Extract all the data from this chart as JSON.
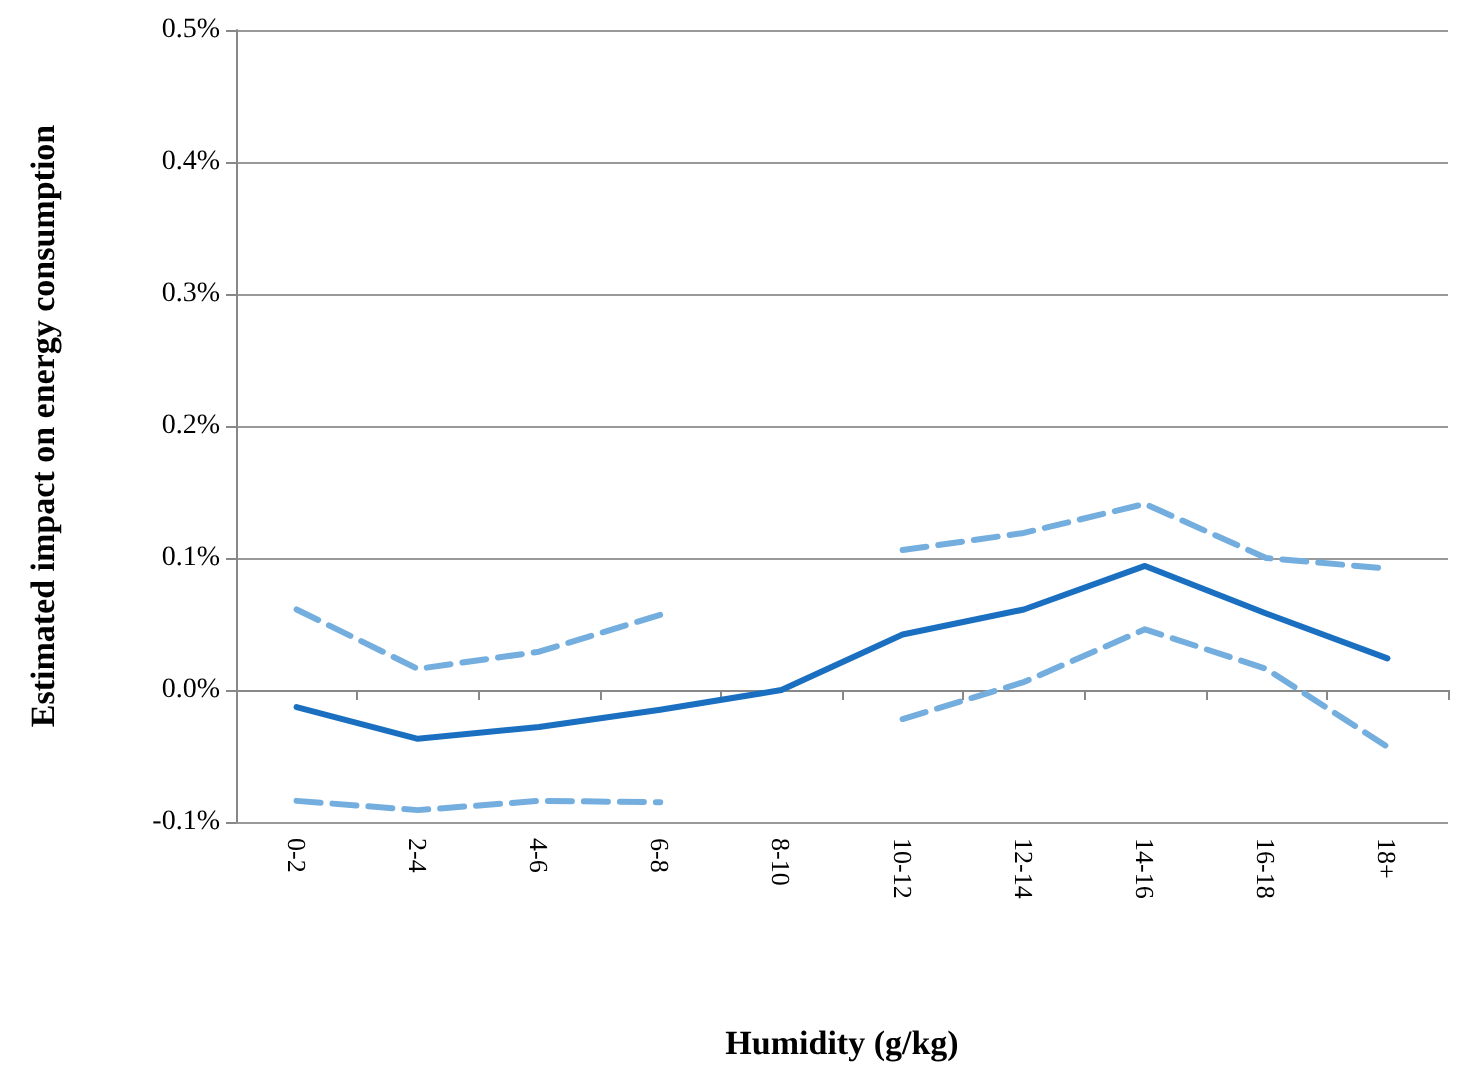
{
  "chart_data": {
    "type": "line",
    "xlabel": "Humidity (g/kg)",
    "ylabel": "Estimated impact on energy consumption",
    "categories": [
      "0-2",
      "2-4",
      "4-6",
      "6-8",
      "8-10",
      "10-12",
      "12-14",
      "14-16",
      "16-18",
      "18+"
    ],
    "series": [
      {
        "color": "#1a6fc0",
        "line_style": "solid",
        "values": [
          -0.013,
          -0.037,
          -0.028,
          -0.015,
          0,
          0.042,
          0.061,
          0.094,
          0.058,
          0.024
        ]
      },
      {
        "color": "#74aede",
        "line_style": "dashed",
        "values": [
          0.061,
          0.016,
          0.029,
          0.057,
          null,
          0.106,
          0.119,
          0.141,
          0.1,
          0.092
        ]
      },
      {
        "color": "#74aede",
        "line_style": "dashed",
        "values": [
          -0.084,
          -0.091,
          -0.084,
          -0.085,
          null,
          -0.022,
          0.006,
          0.046,
          0.016,
          -0.043
        ]
      }
    ],
    "ylim": [
      -0.1,
      0.5
    ],
    "yticks": [
      {
        "value": -0.1,
        "label": "-0.1%"
      },
      {
        "value": 0,
        "label": "0.0%"
      },
      {
        "value": 0.1,
        "label": "0.1%"
      },
      {
        "value": 0.2,
        "label": "0.2%"
      },
      {
        "value": 0.3,
        "label": "0.3%"
      },
      {
        "value": 0.4,
        "label": "0.4%"
      },
      {
        "value": 0.5,
        "label": "0.5%"
      }
    ],
    "grid": "y",
    "marker": "none"
  }
}
